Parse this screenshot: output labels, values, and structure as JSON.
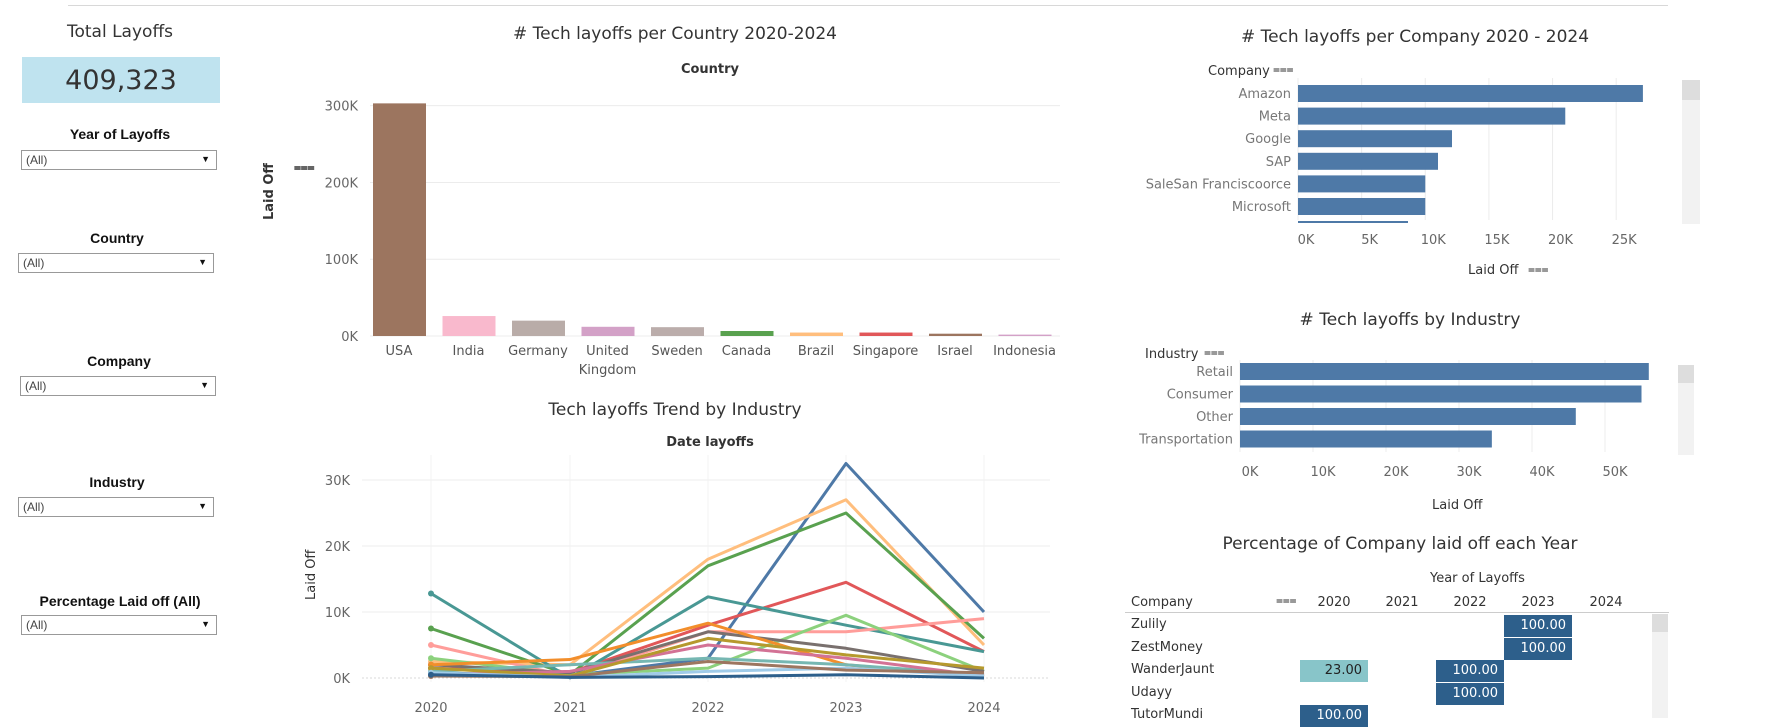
{
  "kpi": {
    "title": "Total Layoffs",
    "value": "409,323"
  },
  "filters": [
    {
      "label": "Year of Layoffs",
      "value": "(All)"
    },
    {
      "label": "Country",
      "value": "(All)"
    },
    {
      "label": "Company",
      "value": "(All)"
    },
    {
      "label": "Industry",
      "value": "(All)"
    },
    {
      "label": "Percentage Laid off (All)",
      "value": "(All)"
    }
  ],
  "country_chart": {
    "title": "# Tech layoffs per Country 2020-2024",
    "header": "Country",
    "ylabel": "Laid Off",
    "ticks": [
      "0K",
      "100K",
      "200K",
      "300K"
    ]
  },
  "company_chart": {
    "title": "# Tech layoffs per Company 2020 - 2024",
    "header": "Company",
    "xlabel": "Laid Off",
    "ticks": [
      "0K",
      "5K",
      "10K",
      "15K",
      "20K",
      "25K"
    ]
  },
  "industry_chart": {
    "title": "# Tech layoffs by Industry",
    "header": "Industry",
    "xlabel": "Laid Off",
    "ticks": [
      "0K",
      "10K",
      "20K",
      "30K",
      "40K",
      "50K"
    ]
  },
  "trend_chart": {
    "title": "Tech layoffs Trend by Industry",
    "header": "Date layoffs",
    "ylabel": "Laid Off",
    "ticks": [
      "0K",
      "10K",
      "20K",
      "30K"
    ]
  },
  "pct_table": {
    "title": "Percentage of Company laid off each Year",
    "col_header": "Year of Layoffs",
    "row_header": "Company",
    "years": [
      "2020",
      "2021",
      "2022",
      "2023",
      "2024"
    ],
    "rows": [
      {
        "company": "Zulily",
        "cells": [
          "",
          "",
          "",
          "100.00",
          ""
        ]
      },
      {
        "company": "ZestMoney",
        "cells": [
          "",
          "",
          "",
          "100.00",
          ""
        ]
      },
      {
        "company": "WanderJaunt",
        "cells": [
          "23.00",
          "",
          "100.00",
          "",
          ""
        ]
      },
      {
        "company": "Udayy",
        "cells": [
          "",
          "",
          "100.00",
          "",
          ""
        ]
      },
      {
        "company": "TutorMundi",
        "cells": [
          "100.00",
          "",
          "",
          "",
          ""
        ]
      }
    ]
  },
  "colors": {
    "bar_blue": "#4e79a7",
    "cell_dark": "#2d5f8b",
    "cell_light": "#88c5c9",
    "kpi_bg": "#bfe3ef"
  },
  "chart_data": [
    {
      "type": "bar",
      "title": "# Tech layoffs per Country 2020-2024",
      "xlabel": "Country",
      "ylabel": "Laid Off",
      "categories": [
        "USA",
        "India",
        "Germany",
        "United Kingdom",
        "Sweden",
        "Canada",
        "Brazil",
        "Singapore",
        "Israel",
        "Indonesia"
      ],
      "values": [
        303000,
        26000,
        20000,
        12000,
        11500,
        6500,
        4500,
        4500,
        3000,
        1800
      ],
      "colors": [
        "#9c755f",
        "#f9b9cd",
        "#b9aca8",
        "#d3a1c7",
        "#bbadab",
        "#59a14f",
        "#ffbe7d",
        "#e15759",
        "#9c755f",
        "#d3a1c7"
      ],
      "ylim": [
        0,
        310000
      ]
    },
    {
      "type": "bar",
      "title": "# Tech layoffs per Company 2020 - 2024",
      "xlabel": "Laid Off",
      "ylabel": "Company",
      "categories": [
        "Amazon",
        "Meta",
        "Google",
        "SAP",
        "SaleSan Franciscoorce",
        "Microsoft"
      ],
      "values": [
        27100,
        21000,
        12100,
        11000,
        10000,
        10000
      ],
      "xlim": [
        0,
        27500
      ]
    },
    {
      "type": "bar",
      "title": "# Tech layoffs by Industry",
      "xlabel": "Laid Off",
      "ylabel": "Industry",
      "categories": [
        "Retail",
        "Consumer",
        "Other",
        "Transportation"
      ],
      "values": [
        56000,
        55000,
        46000,
        34500
      ],
      "xlim": [
        0,
        58000
      ]
    },
    {
      "type": "line",
      "title": "Tech layoffs Trend by Industry",
      "xlabel": "Date layoffs",
      "ylabel": "Laid Off",
      "x": [
        "2020",
        "2021",
        "2022",
        "2023",
        "2024"
      ],
      "ylim": [
        0,
        33000
      ],
      "series": [
        {
          "color": "#4e79a7",
          "values": [
            800,
            300,
            3000,
            32500,
            10000
          ]
        },
        {
          "color": "#ffbe7d",
          "values": [
            2500,
            2000,
            18000,
            27000,
            5000
          ]
        },
        {
          "color": "#59a14f",
          "values": [
            7500,
            500,
            17000,
            25000,
            6000
          ]
        },
        {
          "color": "#e15759",
          "values": [
            1500,
            800,
            8000,
            14500,
            4000
          ]
        },
        {
          "color": "#499894",
          "values": [
            12800,
            0,
            12300,
            8000,
            4000
          ]
        },
        {
          "color": "#ff9d9a",
          "values": [
            5000,
            200,
            7000,
            7000,
            9000
          ]
        },
        {
          "color": "#8cd17d",
          "values": [
            3000,
            500,
            1500,
            9500,
            1000
          ]
        },
        {
          "color": "#79706e",
          "values": [
            2000,
            800,
            7000,
            4500,
            1000
          ]
        },
        {
          "color": "#f28e2b",
          "values": [
            2000,
            2800,
            8300,
            2000,
            200
          ]
        },
        {
          "color": "#76b7b2",
          "values": [
            1000,
            2000,
            3000,
            2000,
            500
          ]
        },
        {
          "color": "#d37295",
          "values": [
            500,
            1000,
            5000,
            3000,
            300
          ]
        },
        {
          "color": "#b6992d",
          "values": [
            1500,
            300,
            6000,
            3500,
            1500
          ]
        },
        {
          "color": "#a0cbe8",
          "values": [
            800,
            100,
            1000,
            1500,
            300
          ]
        },
        {
          "color": "#9d7660",
          "values": [
            300,
            200,
            2500,
            1200,
            800
          ]
        },
        {
          "color": "#2d5f8b",
          "values": [
            500,
            100,
            200,
            500,
            0
          ]
        }
      ]
    }
  ]
}
